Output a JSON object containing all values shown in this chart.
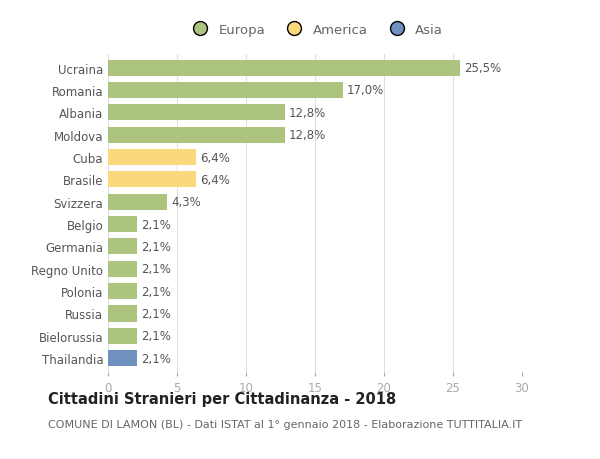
{
  "categories": [
    "Ucraina",
    "Romania",
    "Albania",
    "Moldova",
    "Cuba",
    "Brasile",
    "Svizzera",
    "Belgio",
    "Germania",
    "Regno Unito",
    "Polonia",
    "Russia",
    "Bielorussia",
    "Thailandia"
  ],
  "values": [
    25.5,
    17.0,
    12.8,
    12.8,
    6.4,
    6.4,
    4.3,
    2.1,
    2.1,
    2.1,
    2.1,
    2.1,
    2.1,
    2.1
  ],
  "labels": [
    "25,5%",
    "17,0%",
    "12,8%",
    "12,8%",
    "6,4%",
    "6,4%",
    "4,3%",
    "2,1%",
    "2,1%",
    "2,1%",
    "2,1%",
    "2,1%",
    "2,1%",
    "2,1%"
  ],
  "colors": [
    "#adc47e",
    "#adc47e",
    "#adc47e",
    "#adc47e",
    "#f9d97c",
    "#f9d97c",
    "#adc47e",
    "#adc47e",
    "#adc47e",
    "#adc47e",
    "#adc47e",
    "#adc47e",
    "#adc47e",
    "#7090c0"
  ],
  "legend_labels": [
    "Europa",
    "America",
    "Asia"
  ],
  "legend_colors": [
    "#adc47e",
    "#f9d97c",
    "#7090c0"
  ],
  "title": "Cittadini Stranieri per Cittadinanza - 2018",
  "subtitle": "COMUNE DI LAMON (BL) - Dati ISTAT al 1° gennaio 2018 - Elaborazione TUTTITALIA.IT",
  "xlim": [
    0,
    30
  ],
  "xticks": [
    0,
    5,
    10,
    15,
    20,
    25,
    30
  ],
  "background_color": "#ffffff",
  "grid_color": "#e0e0e0",
  "bar_height": 0.72,
  "label_fontsize": 8.5,
  "title_fontsize": 10.5,
  "subtitle_fontsize": 8,
  "tick_fontsize": 8.5,
  "legend_fontsize": 9.5
}
